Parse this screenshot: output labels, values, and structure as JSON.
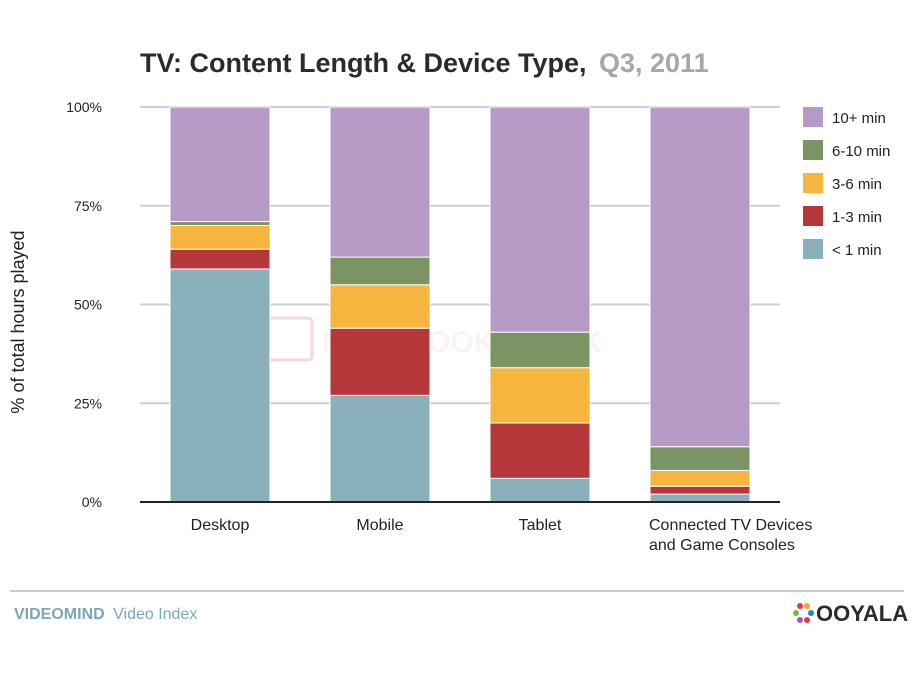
{
  "header": {
    "title": "TV: Content Length & Device Type,",
    "subtitle": "Q3, 2011"
  },
  "footer": {
    "brand_bold": "VIDEOMIND",
    "brand_rest": "Video Index",
    "logo_text": "OOYALA"
  },
  "watermark": "NOTEBOOKCHECK",
  "chart_data": {
    "type": "bar",
    "stacked": true,
    "title": "TV: Content Length & Device Type, Q3, 2011",
    "ylabel": "% of total hours played",
    "xlabel": "",
    "ylim": [
      0,
      100
    ],
    "yticks": [
      0,
      25,
      50,
      75,
      100
    ],
    "ytick_labels": [
      "0%",
      "25%",
      "50%",
      "75%",
      "100%"
    ],
    "categories": [
      [
        "Desktop"
      ],
      [
        "Mobile"
      ],
      [
        "Tablet"
      ],
      [
        "Connected TV Devices",
        "and Game Consoles"
      ]
    ],
    "grid": true,
    "legend_position": "right",
    "series": [
      {
        "name": "< 1 min",
        "color": "#8ab0bb",
        "values": [
          59,
          27,
          6,
          2
        ]
      },
      {
        "name": "1-3 min",
        "color": "#b5373a",
        "values": [
          5,
          17,
          14,
          2
        ]
      },
      {
        "name": "3-6 min",
        "color": "#f5b53f",
        "values": [
          6,
          11,
          14,
          4
        ]
      },
      {
        "name": "6-10 min",
        "color": "#7a9463",
        "values": [
          1,
          7,
          9,
          6
        ]
      },
      {
        "name": "10+ min",
        "color": "#b59ac6",
        "values": [
          29,
          38,
          57,
          86
        ]
      }
    ],
    "legend_order": [
      "10+ min",
      "6-10 min",
      "3-6 min",
      "1-3 min",
      "< 1 min"
    ]
  }
}
